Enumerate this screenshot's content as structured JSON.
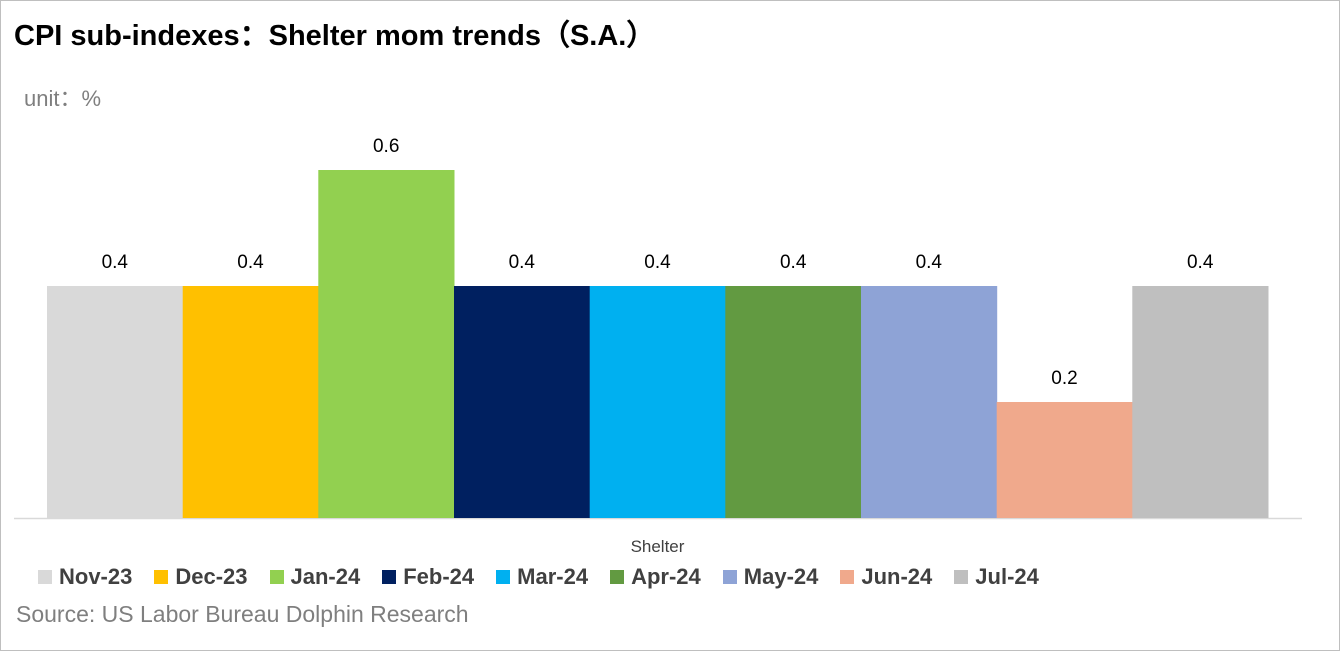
{
  "title": "CPI sub-indexes：Shelter mom trends（S.A.）",
  "unit_label": "unit：%",
  "source": "Source: US Labor Bureau Dolphin Research",
  "chart_data": {
    "type": "bar",
    "title": "CPI sub-indexes：Shelter mom trends（S.A.）",
    "xlabel": "",
    "ylabel": "",
    "categories": [
      "Shelter"
    ],
    "series": [
      {
        "name": "Nov-23",
        "values": [
          0.4
        ],
        "color": "#d9d9d9"
      },
      {
        "name": "Dec-23",
        "values": [
          0.4
        ],
        "color": "#ffc000"
      },
      {
        "name": "Jan-24",
        "values": [
          0.6
        ],
        "color": "#92d050"
      },
      {
        "name": "Feb-24",
        "values": [
          0.4
        ],
        "color": "#002060"
      },
      {
        "name": "Mar-24",
        "values": [
          0.4
        ],
        "color": "#00b0f0"
      },
      {
        "name": "Apr-24",
        "values": [
          0.4
        ],
        "color": "#629a41"
      },
      {
        "name": "May-24",
        "values": [
          0.4
        ],
        "color": "#8ea3d6"
      },
      {
        "name": "Jun-24",
        "values": [
          0.2
        ],
        "color": "#f0a98c"
      },
      {
        "name": "Jul-24",
        "values": [
          0.4
        ],
        "color": "#bfbfbf"
      }
    ],
    "ylim": [
      0,
      0.8
    ],
    "grid": false,
    "legend_position": "bottom"
  }
}
